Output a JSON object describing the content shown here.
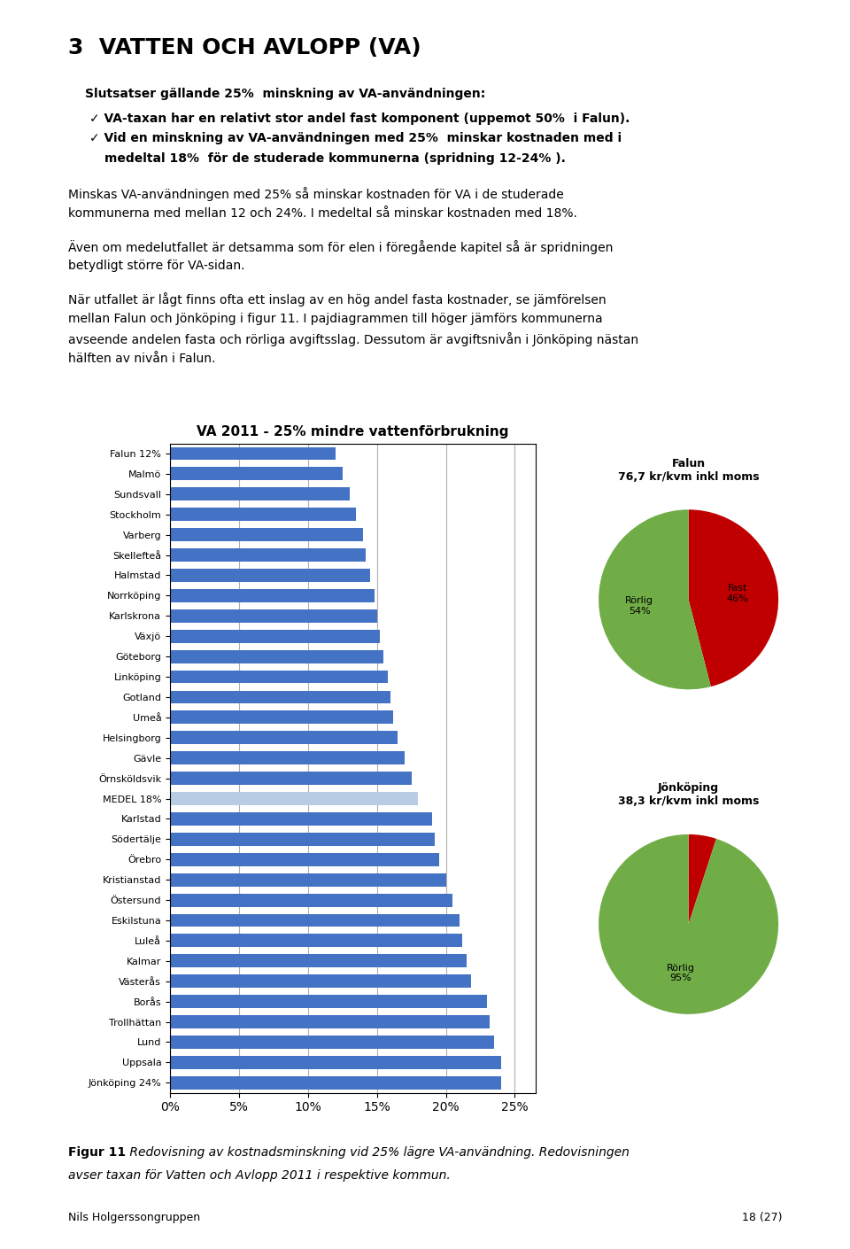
{
  "title": "3  VATTEN OCH AVLOPP (VA)",
  "subtitle": "Slutsatser gällande 25%  minskning av VA-användningen:",
  "annotations": [
    [
      "✓ VA-taxan har en relativt stor andel fast komponent (uppemot 50%  i Falun).",
      "✓ Vid en minskning av VA-användningen med 25%  minskar kostnaden med i",
      "medeltal 18%  för de studerade kommunerna (spridning 12-24% )."
    ],
    [
      "Minskas VA-användningen med 25% så minskar kostnaden för VA i de studerade",
      "kommunerna med mellan 12 och 24%. I medeltal så minskar kostnaden med 18%."
    ],
    [
      "Även om medelutfallet är detsamma som för elen i föregående kapitel så är spridningen",
      "betydligt större för VA-sidan."
    ],
    [
      "När utfallet är lågt finns ofta ett inslag av en hög andel fasta kostnader, se jämförelsen",
      "mellan Falun och Jönköping i figur 11. I pajdiagrammen till höger jämförs kommunerna",
      "avseende andelen fasta och rörliga avgiftsslag. Dessutom är avgiftsnivån i Jönköping nästan",
      "hälften av nivån i Falun."
    ],
    [
      "Figur 11",
      " Redovisning av kostnadsminskning vid 25% lägre VA-användning. Redovisningen",
      "avser taxan för Vatten och Avlopp 2011 i respektive kommun."
    ],
    [
      "Nils Holgerssongruppen",
      "18 (27)"
    ]
  ],
  "chart_data": [
    {
      "type": "bar",
      "orientation": "horizontal",
      "title": "VA 2011 - 25% mindre vattenförbrukning",
      "categories": [
        "Falun 12%",
        "Malmö",
        "Sundsvall",
        "Stockholm",
        "Varberg",
        "Skellefteå",
        "Halmstad",
        "Norrköping",
        "Karlskrona",
        "Växjö",
        "Göteborg",
        "Linköping",
        "Gotland",
        "Umeå",
        "Helsingborg",
        "Gävle",
        "Örnsköldsvik",
        "MEDEL 18%",
        "Karlstad",
        "Södertälje",
        "Örebro",
        "Kristianstad",
        "Östersund",
        "Eskilstuna",
        "Luleå",
        "Kalmar",
        "Västerås",
        "Borås",
        "Trollhättan",
        "Lund",
        "Uppsala",
        "Jönköping 24%"
      ],
      "values": [
        12,
        12.5,
        13,
        13.5,
        14,
        14.2,
        14.5,
        14.8,
        15,
        15.2,
        15.5,
        15.8,
        16,
        16.2,
        16.5,
        17,
        17.5,
        18,
        19,
        19.2,
        19.5,
        20,
        20.5,
        21,
        21.2,
        21.5,
        21.8,
        23,
        23.2,
        23.5,
        24,
        24
      ],
      "colors": [
        "#4472C4",
        "#4472C4",
        "#4472C4",
        "#4472C4",
        "#4472C4",
        "#4472C4",
        "#4472C4",
        "#4472C4",
        "#4472C4",
        "#4472C4",
        "#4472C4",
        "#4472C4",
        "#4472C4",
        "#4472C4",
        "#4472C4",
        "#4472C4",
        "#4472C4",
        "#B8CCE4",
        "#4472C4",
        "#4472C4",
        "#4472C4",
        "#4472C4",
        "#4472C4",
        "#4472C4",
        "#4472C4",
        "#4472C4",
        "#4472C4",
        "#4472C4",
        "#4472C4",
        "#4472C4",
        "#4472C4",
        "#4472C4"
      ],
      "xlim": [
        0,
        26.5
      ],
      "xticks": [
        {
          "value": 0,
          "label": "0%"
        },
        {
          "value": 5,
          "label": "5%"
        },
        {
          "value": 10,
          "label": "10%"
        },
        {
          "value": 15,
          "label": "15%"
        },
        {
          "value": 20,
          "label": "20%"
        },
        {
          "value": 25,
          "label": "25%"
        }
      ],
      "grid": true
    },
    {
      "type": "pie",
      "title": "Falun",
      "subtitle": "76,7 kr/kvm inkl moms",
      "values": [
        46,
        54
      ],
      "colors": [
        "#C00000",
        "#70AD47"
      ],
      "value_labels": [
        "Fast\n46%",
        "Rörlig\n54%"
      ]
    },
    {
      "type": "pie",
      "title": "Jönköping",
      "subtitle": "38,3 kr/kvm inkl moms",
      "values": [
        5,
        95
      ],
      "colors": [
        "#C00000",
        "#70AD47"
      ],
      "value_labels": [
        null,
        "Rörlig\n95%"
      ]
    }
  ]
}
